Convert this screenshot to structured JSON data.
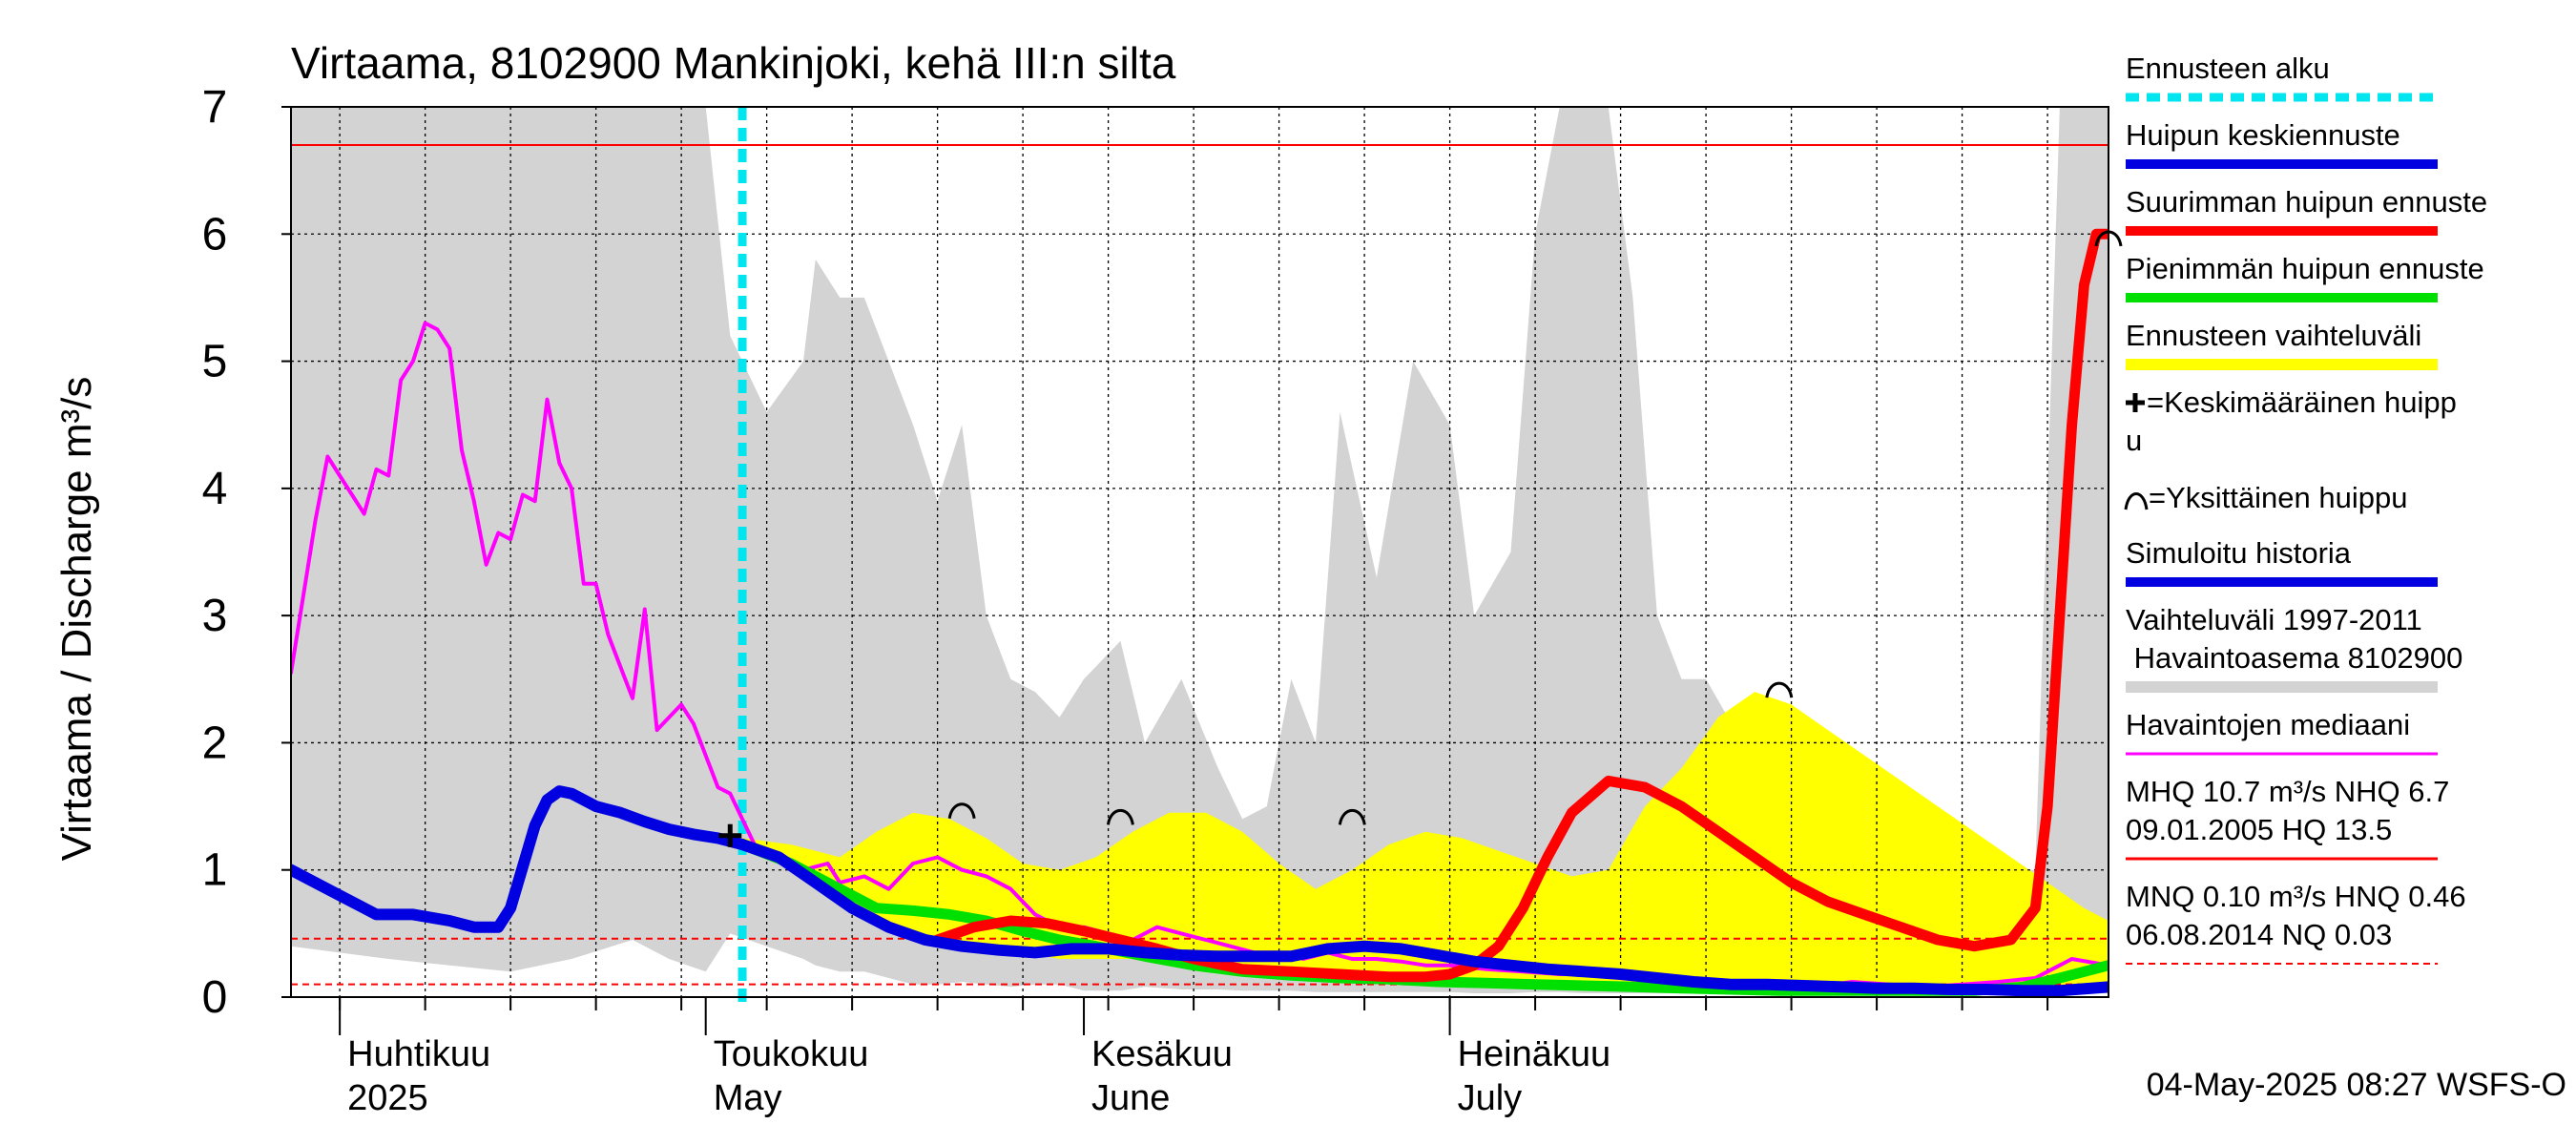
{
  "chart_data": {
    "type": "line",
    "title": "Virtaama, 8102900 Mankinjoki, kehä III:n silta",
    "ylabel": "Virtaama / Discharge    m³/s",
    "ylim": [
      0,
      7
    ],
    "yticks": [
      "0",
      "1",
      "2",
      "3",
      "4",
      "5",
      "6",
      "7"
    ],
    "x_start": "2025-03-28",
    "x_end": "2025-08-24",
    "month_labels": [
      {
        "fi": "Huhtikuu",
        "en": "2025",
        "date": "2025-04-01"
      },
      {
        "fi": "Toukokuu",
        "en": "May",
        "date": "2025-05-01"
      },
      {
        "fi": "Kesäkuu",
        "en": "June",
        "date": "2025-06-01"
      },
      {
        "fi": "Heinäkuu",
        "en": "July",
        "date": "2025-07-01"
      }
    ],
    "forecast_start": "2025-05-04",
    "legend_placement": "right",
    "legend": [
      {
        "key": "forecast_start",
        "label": "Ennusteen alku",
        "color": "#00e5ee",
        "style": "dotted"
      },
      {
        "key": "mean_forecast",
        "label": "Huipun keskiennuste",
        "color": "#0000e0",
        "style": "solid"
      },
      {
        "key": "max_forecast",
        "label": "Suurimman huipun ennuste",
        "color": "#ff0000",
        "style": "solid"
      },
      {
        "key": "min_forecast",
        "label": "Pienimmän huipun ennuste",
        "color": "#00e000",
        "style": "solid"
      },
      {
        "key": "forecast_range",
        "label": "Ennusteen vaihteluväli",
        "color": "#ffff00",
        "style": "band"
      },
      {
        "key": "mean_peak",
        "label": "=Keskimääräinen huippu",
        "color": "#000000",
        "style": "cross"
      },
      {
        "key": "single_peak",
        "label": "=Yksittäinen huippu",
        "color": "#000000",
        "style": "arc"
      },
      {
        "key": "simulated",
        "label": "Simuloitu historia",
        "color": "#0000e0",
        "style": "solid"
      },
      {
        "key": "hist_range",
        "label": "Vaihteluväli 1997-2011\n Havaintoasema 8102900",
        "color": "#d3d3d3",
        "style": "band"
      },
      {
        "key": "median",
        "label": "Havaintojen mediaani",
        "color": "#ff00ff",
        "style": "solid"
      },
      {
        "key": "stats_high",
        "label": "MHQ 10.7 m³/s NHQ  6.7\n09.01.2005 HQ 13.5",
        "color": "#ff0000",
        "style": "solid"
      },
      {
        "key": "stats_low",
        "label": "MNQ 0.10 m³/s HNQ 0.46\n06.08.2014 NQ 0.03",
        "color": "#ff0000",
        "style": "dashed"
      }
    ],
    "reference_lines": [
      {
        "name": "NHQ",
        "value": 6.7,
        "color": "#ff0000",
        "style": "solid"
      },
      {
        "name": "HNQ",
        "value": 0.46,
        "color": "#ff0000",
        "style": "dashed"
      },
      {
        "name": "MNQ",
        "value": 0.1,
        "color": "#ff0000",
        "style": "dashed"
      }
    ],
    "hist_range": {
      "x": [
        "2025-03-28",
        "2025-04-05",
        "2025-04-10",
        "2025-04-15",
        "2025-04-20",
        "2025-04-25",
        "2025-04-28",
        "2025-05-01",
        "2025-05-03",
        "2025-05-06",
        "2025-05-09",
        "2025-05-10",
        "2025-05-12",
        "2025-05-14",
        "2025-05-16",
        "2025-05-18",
        "2025-05-20",
        "2025-05-22",
        "2025-05-24",
        "2025-05-26",
        "2025-05-28",
        "2025-05-30",
        "2025-06-01",
        "2025-06-04",
        "2025-06-06",
        "2025-06-09",
        "2025-06-12",
        "2025-06-14",
        "2025-06-16",
        "2025-06-18",
        "2025-06-20",
        "2025-06-22",
        "2025-06-25",
        "2025-06-28",
        "2025-07-01",
        "2025-07-03",
        "2025-07-06",
        "2025-07-08",
        "2025-07-10",
        "2025-07-12",
        "2025-07-14",
        "2025-07-16",
        "2025-07-18",
        "2025-07-20",
        "2025-07-22",
        "2025-07-25",
        "2025-07-28",
        "2025-07-31",
        "2025-08-03",
        "2025-08-06",
        "2025-08-09",
        "2025-08-12",
        "2025-08-15",
        "2025-08-18",
        "2025-08-20",
        "2025-08-22",
        "2025-08-24"
      ],
      "upper": [
        7,
        7,
        7,
        7,
        7,
        7,
        7,
        7,
        5.2,
        4.6,
        5.0,
        5.8,
        5.5,
        5.5,
        5.0,
        4.5,
        3.9,
        4.5,
        3.0,
        2.5,
        2.4,
        2.2,
        2.5,
        2.8,
        2.0,
        2.5,
        1.8,
        1.4,
        1.5,
        2.5,
        2.0,
        4.6,
        3.3,
        5.0,
        4.5,
        3.0,
        3.5,
        6.0,
        7.0,
        7.0,
        7.0,
        5.5,
        3.0,
        2.5,
        2.5,
        2.0,
        1.8,
        1.6,
        1.5,
        1.4,
        1.2,
        1.1,
        1.0,
        1.0,
        7.0,
        7.0,
        7.0
      ],
      "lower": [
        0.4,
        0.3,
        0.25,
        0.2,
        0.3,
        0.45,
        0.3,
        0.2,
        0.5,
        0.4,
        0.3,
        0.25,
        0.2,
        0.2,
        0.15,
        0.1,
        0.1,
        0.12,
        0.1,
        0.08,
        0.1,
        0.1,
        0.05,
        0.05,
        0.08,
        0.06,
        0.06,
        0.05,
        0.05,
        0.05,
        0.04,
        0.04,
        0.04,
        0.04,
        0.04,
        0.03,
        0.03,
        0.04,
        0.04,
        0.03,
        0.03,
        0.03,
        0.03,
        0.03,
        0.03,
        0.03,
        0.03,
        0.03,
        0.03,
        0.03,
        0.03,
        0.03,
        0.03,
        0.03,
        0.03,
        0.03,
        0.03
      ]
    },
    "forecast_range": {
      "x": [
        "2025-05-04",
        "2025-05-08",
        "2025-05-12",
        "2025-05-15",
        "2025-05-18",
        "2025-05-21",
        "2025-05-24",
        "2025-05-27",
        "2025-05-30",
        "2025-06-02",
        "2025-06-05",
        "2025-06-08",
        "2025-06-11",
        "2025-06-14",
        "2025-06-17",
        "2025-06-20",
        "2025-06-23",
        "2025-06-26",
        "2025-06-29",
        "2025-07-02",
        "2025-07-05",
        "2025-07-08",
        "2025-07-11",
        "2025-07-14",
        "2025-07-17",
        "2025-07-20",
        "2025-07-23",
        "2025-07-26",
        "2025-07-29",
        "2025-08-01",
        "2025-08-04",
        "2025-08-07",
        "2025-08-10",
        "2025-08-13",
        "2025-08-16",
        "2025-08-19",
        "2025-08-22",
        "2025-08-24"
      ],
      "upper": [
        1.25,
        1.2,
        1.1,
        1.3,
        1.45,
        1.4,
        1.25,
        1.05,
        1.0,
        1.1,
        1.3,
        1.45,
        1.45,
        1.3,
        1.05,
        0.85,
        1.0,
        1.2,
        1.3,
        1.25,
        1.15,
        1.05,
        0.95,
        1.0,
        1.5,
        1.8,
        2.2,
        2.4,
        2.3,
        2.1,
        1.9,
        1.7,
        1.5,
        1.3,
        1.1,
        0.9,
        0.7,
        0.6
      ],
      "lower": [
        1.2,
        1.0,
        0.8,
        0.6,
        0.5,
        0.45,
        0.4,
        0.35,
        0.3,
        0.3,
        0.3,
        0.3,
        0.28,
        0.25,
        0.22,
        0.2,
        0.18,
        0.18,
        0.16,
        0.15,
        0.14,
        0.13,
        0.12,
        0.12,
        0.1,
        0.1,
        0.09,
        0.08,
        0.07,
        0.07,
        0.06,
        0.06,
        0.05,
        0.05,
        0.05,
        0.05,
        0.05,
        0.05
      ]
    },
    "series": [
      {
        "name": "Havaintojen mediaani",
        "key": "median",
        "color": "#ff00ff",
        "x": [
          "2025-03-28",
          "2025-03-30",
          "2025-03-31",
          "2025-04-01",
          "2025-04-02",
          "2025-04-03",
          "2025-04-04",
          "2025-04-05",
          "2025-04-06",
          "2025-04-07",
          "2025-04-08",
          "2025-04-09",
          "2025-04-10",
          "2025-04-11",
          "2025-04-12",
          "2025-04-13",
          "2025-04-14",
          "2025-04-15",
          "2025-04-16",
          "2025-04-17",
          "2025-04-18",
          "2025-04-19",
          "2025-04-20",
          "2025-04-21",
          "2025-04-22",
          "2025-04-23",
          "2025-04-24",
          "2025-04-25",
          "2025-04-26",
          "2025-04-27",
          "2025-04-28",
          "2025-04-29",
          "2025-04-30",
          "2025-05-01",
          "2025-05-02",
          "2025-05-03",
          "2025-05-05",
          "2025-05-07",
          "2025-05-09",
          "2025-05-11",
          "2025-05-12",
          "2025-05-14",
          "2025-05-16",
          "2025-05-18",
          "2025-05-20",
          "2025-05-22",
          "2025-05-24",
          "2025-05-26",
          "2025-05-28",
          "2025-05-30",
          "2025-06-01",
          "2025-06-03",
          "2025-06-05",
          "2025-06-07",
          "2025-06-09",
          "2025-06-11",
          "2025-06-13",
          "2025-06-15",
          "2025-06-17",
          "2025-06-19",
          "2025-06-21",
          "2025-06-23",
          "2025-06-25",
          "2025-06-27",
          "2025-06-29",
          "2025-07-01",
          "2025-07-04",
          "2025-07-07",
          "2025-07-10",
          "2025-07-13",
          "2025-07-16",
          "2025-07-19",
          "2025-07-22",
          "2025-07-25",
          "2025-07-28",
          "2025-07-31",
          "2025-08-03",
          "2025-08-06",
          "2025-08-09",
          "2025-08-12",
          "2025-08-15",
          "2025-08-18",
          "2025-08-21",
          "2025-08-24"
        ],
        "values": [
          2.55,
          3.75,
          4.25,
          4.1,
          3.95,
          3.8,
          4.15,
          4.1,
          4.85,
          5.0,
          5.3,
          5.25,
          5.1,
          4.3,
          3.9,
          3.4,
          3.65,
          3.6,
          3.95,
          3.9,
          4.7,
          4.2,
          4.0,
          3.25,
          3.25,
          2.85,
          2.6,
          2.35,
          3.05,
          2.1,
          2.2,
          2.3,
          2.15,
          1.9,
          1.65,
          1.6,
          1.2,
          1.1,
          1.0,
          1.05,
          0.9,
          0.95,
          0.85,
          1.05,
          1.1,
          1.0,
          0.95,
          0.85,
          0.65,
          0.55,
          0.55,
          0.5,
          0.45,
          0.55,
          0.5,
          0.45,
          0.4,
          0.35,
          0.35,
          0.3,
          0.35,
          0.3,
          0.3,
          0.28,
          0.25,
          0.25,
          0.22,
          0.2,
          0.18,
          0.18,
          0.2,
          0.15,
          0.12,
          0.12,
          0.1,
          0.08,
          0.12,
          0.1,
          0.08,
          0.1,
          0.12,
          0.15,
          0.3,
          0.25
        ]
      },
      {
        "name": "Simuloitu historia",
        "key": "simulated",
        "color": "#0000e0",
        "x": [
          "2025-03-28",
          "2025-04-01",
          "2025-04-04",
          "2025-04-07",
          "2025-04-10",
          "2025-04-12",
          "2025-04-14",
          "2025-04-15",
          "2025-04-17",
          "2025-04-18",
          "2025-04-19",
          "2025-04-20",
          "2025-04-22",
          "2025-04-24",
          "2025-04-26",
          "2025-04-28",
          "2025-04-30",
          "2025-05-02",
          "2025-05-04"
        ],
        "values": [
          1.0,
          0.8,
          0.65,
          0.65,
          0.6,
          0.55,
          0.55,
          0.7,
          1.35,
          1.55,
          1.62,
          1.6,
          1.5,
          1.45,
          1.38,
          1.32,
          1.28,
          1.25,
          1.2
        ]
      },
      {
        "name": "Huipun keskiennuste",
        "key": "mean_forecast",
        "color": "#0000e0",
        "x": [
          "2025-05-04",
          "2025-05-07",
          "2025-05-10",
          "2025-05-13",
          "2025-05-16",
          "2025-05-19",
          "2025-05-22",
          "2025-05-25",
          "2025-05-28",
          "2025-05-31",
          "2025-06-03",
          "2025-06-06",
          "2025-06-09",
          "2025-06-12",
          "2025-06-15",
          "2025-06-18",
          "2025-06-21",
          "2025-06-24",
          "2025-06-27",
          "2025-06-30",
          "2025-07-03",
          "2025-07-06",
          "2025-07-09",
          "2025-07-12",
          "2025-07-15",
          "2025-07-18",
          "2025-07-21",
          "2025-07-24",
          "2025-07-27",
          "2025-07-30",
          "2025-08-02",
          "2025-08-05",
          "2025-08-08",
          "2025-08-11",
          "2025-08-14",
          "2025-08-17",
          "2025-08-20",
          "2025-08-24"
        ],
        "values": [
          1.2,
          1.1,
          0.9,
          0.7,
          0.55,
          0.45,
          0.4,
          0.37,
          0.35,
          0.38,
          0.38,
          0.35,
          0.33,
          0.32,
          0.32,
          0.32,
          0.38,
          0.4,
          0.38,
          0.33,
          0.28,
          0.25,
          0.22,
          0.2,
          0.18,
          0.15,
          0.12,
          0.1,
          0.1,
          0.09,
          0.08,
          0.07,
          0.07,
          0.06,
          0.06,
          0.05,
          0.05,
          0.08
        ]
      },
      {
        "name": "Pienimmän huipun ennuste",
        "key": "min_forecast",
        "color": "#00e000",
        "x": [
          "2025-05-04",
          "2025-05-08",
          "2025-05-12",
          "2025-05-15",
          "2025-05-18",
          "2025-05-21",
          "2025-05-24",
          "2025-05-27",
          "2025-05-30",
          "2025-06-02",
          "2025-06-06",
          "2025-06-10",
          "2025-06-14",
          "2025-06-18",
          "2025-06-22",
          "2025-06-26",
          "2025-06-30",
          "2025-07-04",
          "2025-07-08",
          "2025-07-12",
          "2025-07-16",
          "2025-07-20",
          "2025-07-24",
          "2025-07-28",
          "2025-08-01",
          "2025-08-05",
          "2025-08-09",
          "2025-08-13",
          "2025-08-17",
          "2025-08-20",
          "2025-08-24"
        ],
        "values": [
          1.2,
          1.05,
          0.85,
          0.7,
          0.68,
          0.65,
          0.6,
          0.52,
          0.45,
          0.4,
          0.32,
          0.25,
          0.2,
          0.17,
          0.15,
          0.14,
          0.12,
          0.11,
          0.1,
          0.09,
          0.08,
          0.07,
          0.06,
          0.05,
          0.05,
          0.05,
          0.05,
          0.05,
          0.08,
          0.15,
          0.25
        ]
      },
      {
        "name": "Suurimman huipun ennuste",
        "key": "max_forecast",
        "color": "#ff0000",
        "x": [
          "2025-05-20",
          "2025-05-23",
          "2025-05-26",
          "2025-05-29",
          "2025-06-01",
          "2025-06-04",
          "2025-06-07",
          "2025-06-10",
          "2025-06-14",
          "2025-06-18",
          "2025-06-22",
          "2025-06-26",
          "2025-06-29",
          "2025-07-01",
          "2025-07-03",
          "2025-07-05",
          "2025-07-07",
          "2025-07-09",
          "2025-07-11",
          "2025-07-14",
          "2025-07-17",
          "2025-07-20",
          "2025-07-23",
          "2025-07-26",
          "2025-07-29",
          "2025-08-01",
          "2025-08-04",
          "2025-08-07",
          "2025-08-10",
          "2025-08-13",
          "2025-08-16",
          "2025-08-18",
          "2025-08-19",
          "2025-08-20",
          "2025-08-21",
          "2025-08-22",
          "2025-08-23",
          "2025-08-24"
        ],
        "values": [
          0.45,
          0.55,
          0.6,
          0.58,
          0.52,
          0.45,
          0.38,
          0.3,
          0.22,
          0.2,
          0.18,
          0.16,
          0.16,
          0.18,
          0.25,
          0.4,
          0.7,
          1.1,
          1.45,
          1.7,
          1.65,
          1.5,
          1.3,
          1.1,
          0.9,
          0.75,
          0.65,
          0.55,
          0.45,
          0.4,
          0.45,
          0.7,
          1.5,
          3.0,
          4.5,
          5.6,
          6.0,
          6.0
        ]
      }
    ],
    "single_peaks": [
      {
        "date": "2025-05-22",
        "value": 1.45
      },
      {
        "date": "2025-06-04",
        "value": 1.4
      },
      {
        "date": "2025-06-23",
        "value": 1.4
      },
      {
        "date": "2025-07-28",
        "value": 2.4
      },
      {
        "date": "2025-08-24",
        "value": 5.95
      }
    ],
    "mean_peak": {
      "date": "2025-05-03",
      "value": 1.27
    },
    "timestamp": "04-May-2025 08:27 WSFS-O"
  }
}
